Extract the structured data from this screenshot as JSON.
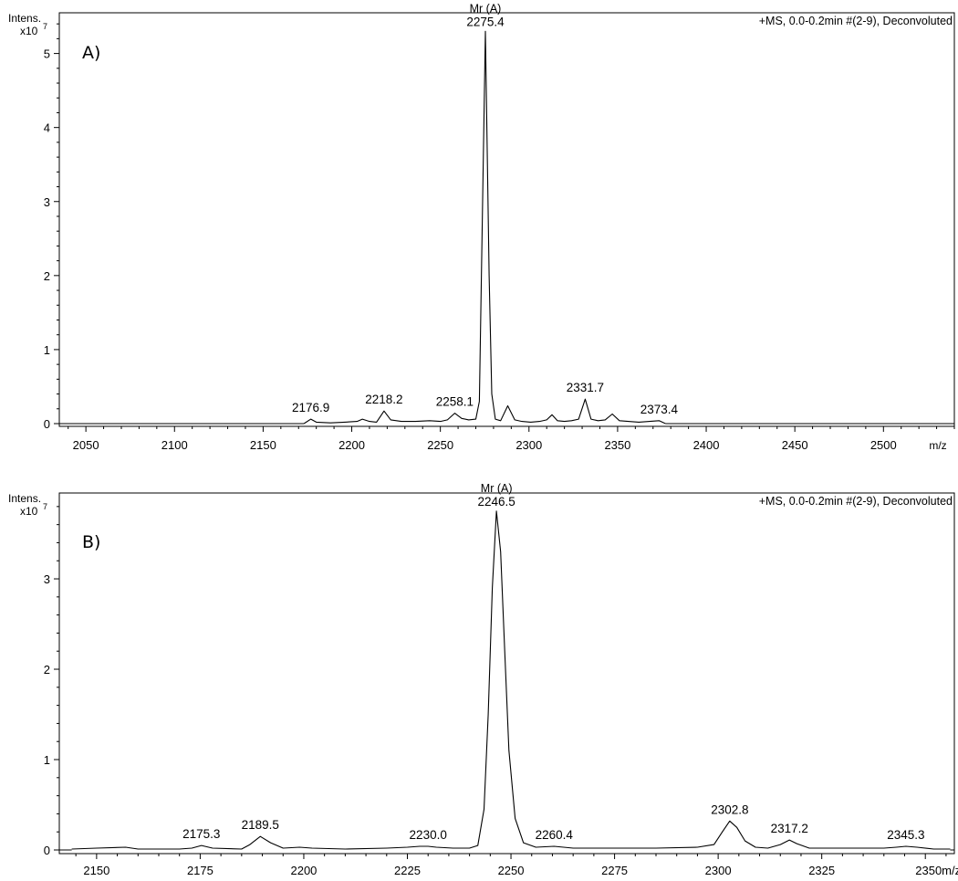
{
  "chart_data": [
    {
      "type": "line",
      "panel_label": "A)",
      "header": "+MS, 0.0-0.2min #(2-9), Deconvoluted",
      "ylabel": "Intens.",
      "ymult": "x10",
      "ymult_exp": "7",
      "xunit": "m/z",
      "xlim": [
        2035,
        2540
      ],
      "ylim": [
        0,
        5.55
      ],
      "xticks": [
        2050,
        2100,
        2150,
        2200,
        2250,
        2300,
        2350,
        2400,
        2450,
        2500
      ],
      "yticks": [
        0,
        1,
        2,
        3,
        4,
        5
      ],
      "peak_annotation": {
        "name": "Mr (A)",
        "x": 2275.4,
        "y": 5.3
      },
      "peak_labels": [
        {
          "text": "2176.9",
          "x": 2176.9,
          "y": 0.06
        },
        {
          "text": "2218.2",
          "x": 2218.2,
          "y": 0.17
        },
        {
          "text": "2258.1",
          "x": 2258.1,
          "y": 0.14
        },
        {
          "text": "2275.4",
          "x": 2275.4,
          "y": 5.3
        },
        {
          "text": "2331.7",
          "x": 2331.7,
          "y": 0.33
        },
        {
          "text": "2373.4",
          "x": 2373.4,
          "y": 0.04
        }
      ],
      "series": [
        {
          "x": [
            2173,
            2176.9,
            2180,
            2188,
            2196,
            2203,
            2206,
            2210,
            2214,
            2218.2,
            2222,
            2228,
            2236,
            2244,
            2250,
            2254,
            2258.1,
            2262,
            2266,
            2270,
            2272,
            2273.5,
            2275.4,
            2277.5,
            2279,
            2281,
            2284,
            2288,
            2292,
            2296,
            2301,
            2306,
            2310,
            2313,
            2316,
            2320,
            2324,
            2328,
            2331.7,
            2335,
            2339,
            2343,
            2347,
            2351,
            2356,
            2362,
            2368,
            2373.4,
            2377
          ],
          "y": [
            0,
            0.06,
            0.02,
            0.01,
            0.02,
            0.03,
            0.06,
            0.03,
            0.02,
            0.17,
            0.05,
            0.03,
            0.03,
            0.04,
            0.03,
            0.05,
            0.14,
            0.07,
            0.05,
            0.06,
            0.3,
            2.5,
            5.3,
            2.0,
            0.4,
            0.06,
            0.04,
            0.24,
            0.05,
            0.03,
            0.02,
            0.03,
            0.05,
            0.12,
            0.04,
            0.03,
            0.04,
            0.06,
            0.33,
            0.06,
            0.04,
            0.05,
            0.13,
            0.04,
            0.03,
            0.02,
            0.03,
            0.04,
            0
          ]
        }
      ]
    },
    {
      "type": "line",
      "panel_label": "B)",
      "header": "+MS, 0.0-0.2min #(2-9), Deconvoluted",
      "ylabel": "Intens.",
      "ymult": "x10",
      "ymult_exp": "7",
      "xunit": "m/z",
      "xlim": [
        2141,
        2357
      ],
      "ylim": [
        0,
        3.95
      ],
      "xticks": [
        2150,
        2175,
        2200,
        2225,
        2250,
        2275,
        2300,
        2325,
        2350
      ],
      "xticklabels": [
        "2150",
        "2175",
        "2200",
        "2225",
        "2250",
        "2275",
        "2300",
        "2325",
        "2350m/z"
      ],
      "yticks": [
        0,
        1,
        2,
        3
      ],
      "peak_annotation": {
        "name": "Mr (A)",
        "x": 2246.5,
        "y": 3.75
      },
      "peak_labels": [
        {
          "text": "2175.3",
          "x": 2175.3,
          "y": 0.05
        },
        {
          "text": "2189.5",
          "x": 2189.5,
          "y": 0.15
        },
        {
          "text": "2230.0",
          "x": 2230.0,
          "y": 0.04
        },
        {
          "text": "2246.5",
          "x": 2246.5,
          "y": 3.75
        },
        {
          "text": "2260.4",
          "x": 2260.4,
          "y": 0.04
        },
        {
          "text": "2302.8",
          "x": 2302.8,
          "y": 0.32
        },
        {
          "text": "2317.2",
          "x": 2317.2,
          "y": 0.11
        },
        {
          "text": "2345.3",
          "x": 2345.3,
          "y": 0.04
        }
      ],
      "series": [
        {
          "x": [
            2144,
            2150,
            2157,
            2160,
            2170,
            2173,
            2175.3,
            2178,
            2185,
            2187,
            2189.5,
            2192,
            2195,
            2199,
            2202,
            2210,
            2220,
            2225,
            2228,
            2230.0,
            2232,
            2236,
            2240,
            2242,
            2243.5,
            2244.5,
            2245.5,
            2246.5,
            2247.5,
            2248.5,
            2249.5,
            2251,
            2253,
            2256,
            2260.4,
            2265,
            2275,
            2285,
            2295,
            2299,
            2301,
            2302.8,
            2304.5,
            2306.5,
            2309,
            2312,
            2315,
            2317.2,
            2319,
            2322,
            2330,
            2340,
            2343,
            2345.3,
            2348,
            2352,
            2356
          ],
          "y": [
            0.01,
            0.02,
            0.03,
            0.01,
            0.01,
            0.02,
            0.05,
            0.02,
            0.01,
            0.06,
            0.15,
            0.08,
            0.02,
            0.03,
            0.02,
            0.01,
            0.02,
            0.03,
            0.04,
            0.04,
            0.03,
            0.02,
            0.02,
            0.05,
            0.45,
            1.5,
            2.9,
            3.75,
            3.3,
            2.2,
            1.1,
            0.35,
            0.08,
            0.03,
            0.04,
            0.02,
            0.02,
            0.02,
            0.03,
            0.06,
            0.2,
            0.32,
            0.25,
            0.1,
            0.03,
            0.02,
            0.06,
            0.11,
            0.07,
            0.02,
            0.02,
            0.02,
            0.03,
            0.04,
            0.03,
            0.01,
            0.01
          ]
        }
      ]
    }
  ]
}
